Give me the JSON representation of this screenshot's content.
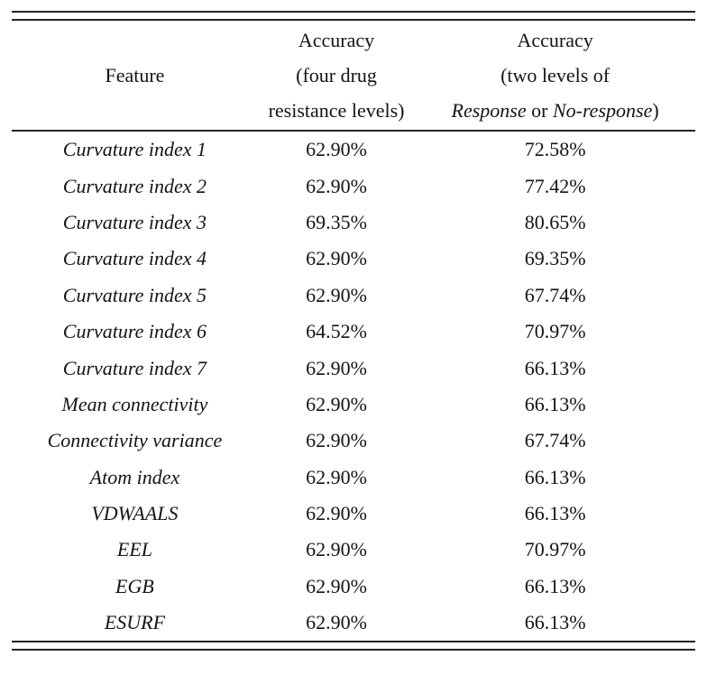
{
  "colors": {
    "background": "#ffffff",
    "text": "#141414",
    "rule": "#242424"
  },
  "table": {
    "header": {
      "feature": "Feature",
      "accuracy_four": {
        "line1": "Accuracy",
        "line2": "(four drug",
        "line3": "resistance levels)"
      },
      "accuracy_two": {
        "line1": "Accuracy",
        "line2": "(two levels of",
        "line3_italic1": "Response",
        "line3_mid": " or ",
        "line3_italic2": "No-response",
        "line3_end": ")"
      }
    },
    "rows": [
      {
        "feature": "Curvature index 1",
        "acc_four": "62.90%",
        "acc_two": "72.58%"
      },
      {
        "feature": "Curvature index 2",
        "acc_four": "62.90%",
        "acc_two": "77.42%"
      },
      {
        "feature": "Curvature index 3",
        "acc_four": "69.35%",
        "acc_two": "80.65%"
      },
      {
        "feature": "Curvature index 4",
        "acc_four": "62.90%",
        "acc_two": "69.35%"
      },
      {
        "feature": "Curvature index 5",
        "acc_four": "62.90%",
        "acc_two": "67.74%"
      },
      {
        "feature": "Curvature index 6",
        "acc_four": "64.52%",
        "acc_two": "70.97%"
      },
      {
        "feature": "Curvature index 7",
        "acc_four": "62.90%",
        "acc_two": "66.13%"
      },
      {
        "feature": "Mean connectivity",
        "acc_four": "62.90%",
        "acc_two": "66.13%"
      },
      {
        "feature": "Connectivity variance",
        "acc_four": "62.90%",
        "acc_two": "67.74%"
      },
      {
        "feature": "Atom index",
        "acc_four": "62.90%",
        "acc_two": "66.13%"
      },
      {
        "feature": "VDWAALS",
        "acc_four": "62.90%",
        "acc_two": "66.13%"
      },
      {
        "feature": "EEL",
        "acc_four": "62.90%",
        "acc_two": "70.97%"
      },
      {
        "feature": "EGB",
        "acc_four": "62.90%",
        "acc_two": "66.13%"
      },
      {
        "feature": "ESURF",
        "acc_four": "62.90%",
        "acc_two": "66.13%"
      }
    ]
  }
}
